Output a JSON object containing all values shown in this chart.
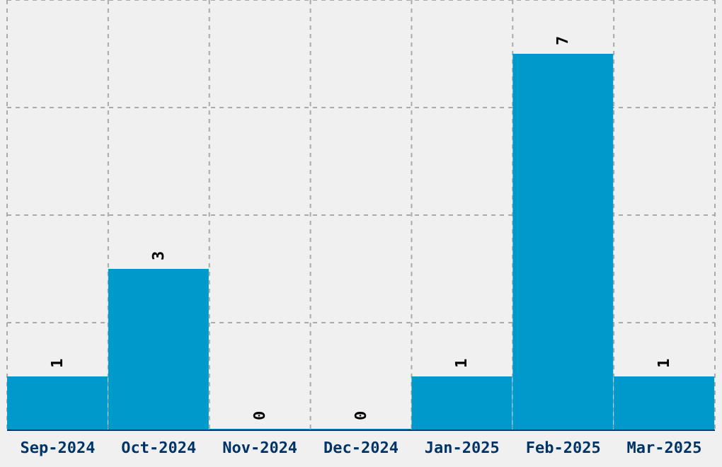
{
  "chart_data": {
    "type": "bar",
    "categories": [
      "Sep-2024",
      "Oct-2024",
      "Nov-2024",
      "Dec-2024",
      "Jan-2025",
      "Feb-2025",
      "Mar-2025"
    ],
    "values": [
      1,
      3,
      0,
      0,
      1,
      7,
      1
    ],
    "color": "#0099cc",
    "data_labels": true,
    "grid": true
  }
}
